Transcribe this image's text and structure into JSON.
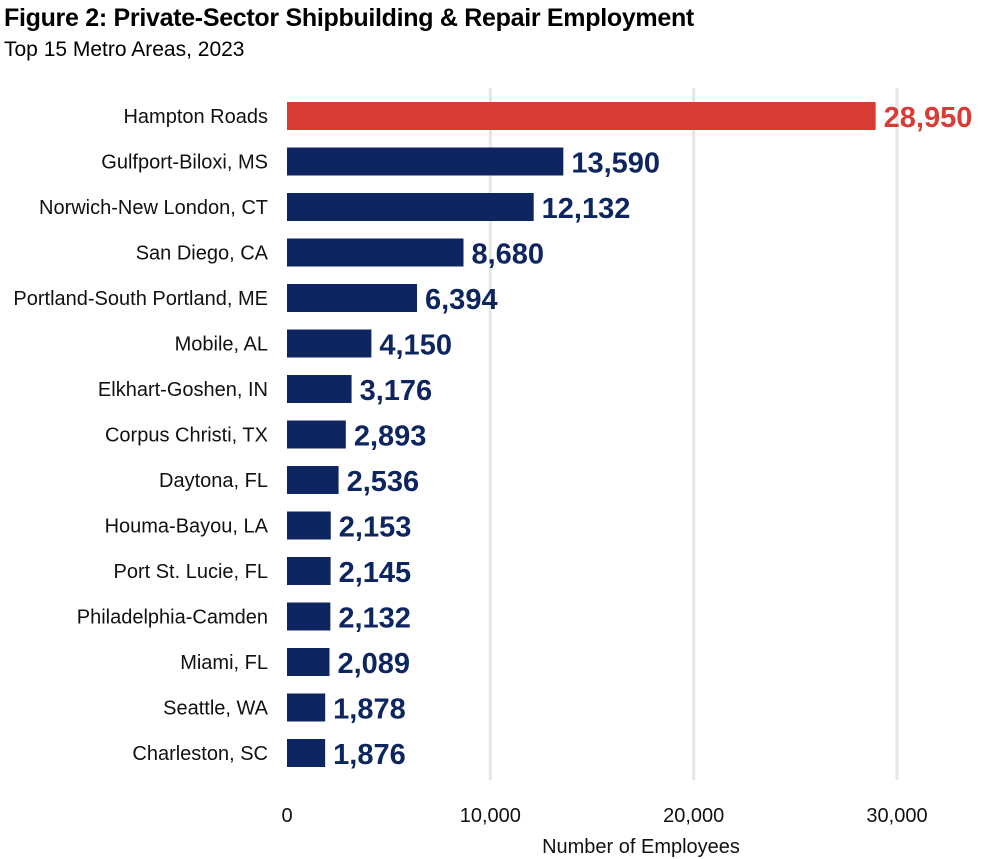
{
  "chart_data": {
    "type": "bar",
    "orientation": "horizontal",
    "title": "Figure 2: Private-Sector Shipbuilding & Repair Employment",
    "subtitle": "Top 15 Metro Areas, 2023",
    "xlabel": "Number of Employees",
    "ylabel": "",
    "xlim": [
      0,
      33000
    ],
    "xticks": [
      0,
      10000,
      20000,
      30000
    ],
    "xtick_labels": [
      "0",
      "10,000",
      "20,000",
      "30,000"
    ],
    "grid": "vertical",
    "categories": [
      "Hampton Roads",
      "Gulfport-Biloxi, MS",
      "Norwich-New London, CT",
      "San Diego, CA",
      "Portland-South Portland, ME",
      "Mobile, AL",
      "Elkhart-Goshen, IN",
      "Corpus Christi, TX",
      "Daytona, FL",
      "Houma-Bayou, LA",
      "Port St. Lucie, FL",
      "Philadelphia-Camden",
      "Miami, FL",
      "Seattle, WA",
      "Charleston, SC"
    ],
    "values": [
      28950,
      13590,
      12132,
      8680,
      6394,
      4150,
      3176,
      2893,
      2536,
      2153,
      2145,
      2132,
      2089,
      1878,
      1876
    ],
    "value_labels": [
      "28,950",
      "13,590",
      "12,132",
      "8,680",
      "6,394",
      "4,150",
      "3,176",
      "2,893",
      "2,536",
      "2,153",
      "2,145",
      "2,132",
      "2,089",
      "1,878",
      "1,876"
    ],
    "colors": {
      "highlight": "#d93b35",
      "default": "#0d2660",
      "grid": "#e6e6e6"
    },
    "highlight_index": 0
  }
}
